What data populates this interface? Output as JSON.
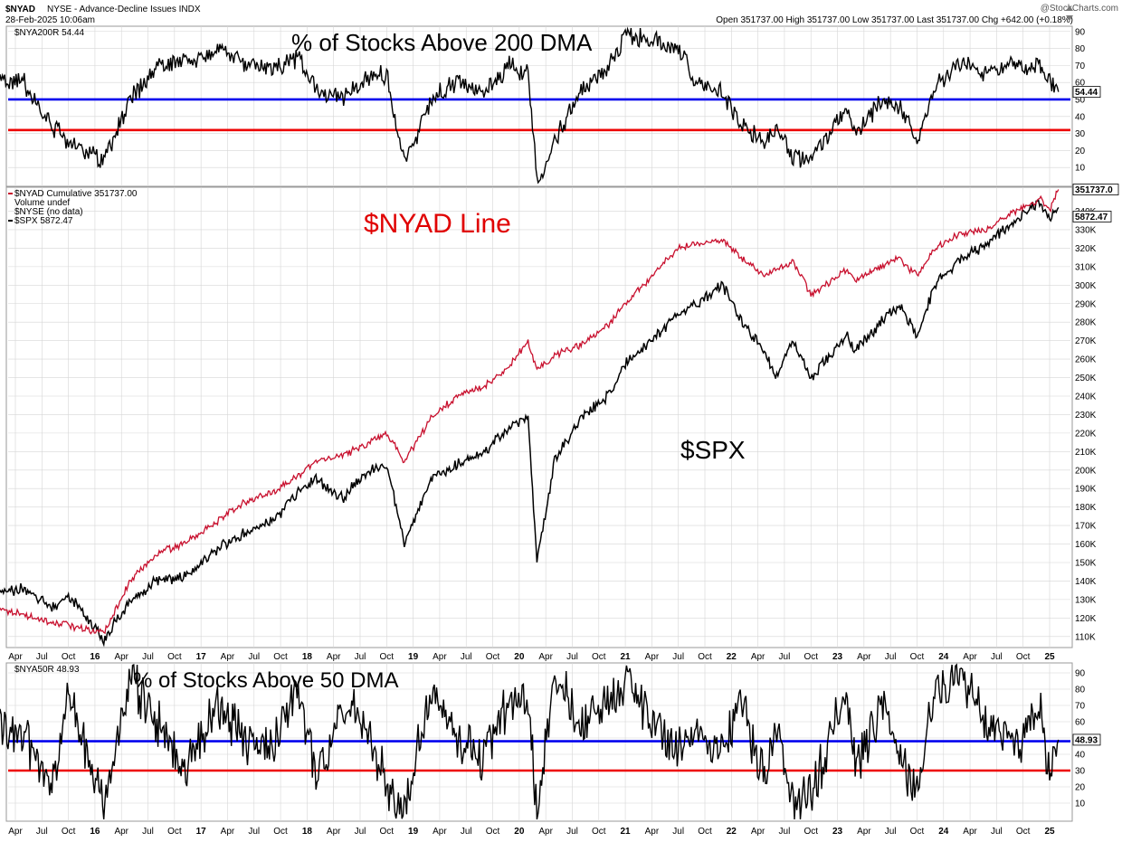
{
  "header": {
    "symbol": "$NYAD",
    "description": "NYSE - Advance-Decline Issues INDX",
    "date": "28-Feb-2025 10:06am",
    "quote": "Open 351737.00  High 351737.00  Low 351737.00  Last 351737.00  Chg +642.00 (+0.18%)",
    "brand": "@StockCharts.com"
  },
  "colors": {
    "black_series": "#000000",
    "ad_line": "#c8102e",
    "blue_threshold": "#0000ee",
    "red_threshold": "#ee0000",
    "grid": "#d6d6d6",
    "panel_border": "#9a9a9a"
  },
  "x_axis_labels": [
    "Apr",
    "Jul",
    "Oct",
    "16",
    "Apr",
    "Jul",
    "Oct",
    "17",
    "Apr",
    "Jul",
    "Oct",
    "18",
    "Apr",
    "Jul",
    "Oct",
    "19",
    "Apr",
    "Jul",
    "Oct",
    "20",
    "Apr",
    "Jul",
    "Oct",
    "21",
    "Apr",
    "Jul",
    "Oct",
    "22",
    "Apr",
    "Jul",
    "Oct",
    "23",
    "Apr",
    "Jul",
    "Oct",
    "24",
    "Apr",
    "Jul",
    "Oct",
    "25"
  ],
  "chart_data": [
    {
      "type": "line",
      "legend": "$NYA200R 54.44",
      "annotation": "% of Stocks Above 200 DMA",
      "last_value_label": "54.44",
      "yticks": [
        10,
        20,
        30,
        40,
        50,
        60,
        70,
        80,
        90
      ],
      "ylim": [
        0,
        92
      ],
      "hlines": [
        {
          "y": 50,
          "color": "blue"
        },
        {
          "y": 32,
          "color": "red"
        }
      ],
      "x": [
        "2015-02",
        "2015-05",
        "2015-08",
        "2015-10",
        "2016-02",
        "2016-05",
        "2016-08",
        "2016-11",
        "2017-03",
        "2017-06",
        "2017-09",
        "2017-12",
        "2018-02",
        "2018-05",
        "2018-08",
        "2018-10",
        "2018-12",
        "2019-03",
        "2019-06",
        "2019-09",
        "2019-12",
        "2020-02",
        "2020-03",
        "2020-05",
        "2020-08",
        "2020-11",
        "2021-01",
        "2021-04",
        "2021-07",
        "2021-09",
        "2021-12",
        "2022-02",
        "2022-05",
        "2022-06",
        "2022-08",
        "2022-10",
        "2023-02",
        "2023-03",
        "2023-06",
        "2023-08",
        "2023-10",
        "2023-12",
        "2024-03",
        "2024-06",
        "2024-09",
        "2024-12",
        "2025-01",
        "2025-02"
      ],
      "series": [
        {
          "values": [
            62,
            60,
            35,
            25,
            15,
            50,
            70,
            72,
            80,
            72,
            68,
            75,
            55,
            52,
            62,
            65,
            12,
            50,
            60,
            55,
            70,
            65,
            3,
            25,
            55,
            68,
            88,
            85,
            80,
            60,
            55,
            35,
            25,
            35,
            15,
            15,
            45,
            30,
            50,
            45,
            25,
            58,
            72,
            65,
            70,
            70,
            60,
            54.44
          ]
        }
      ]
    },
    {
      "type": "line",
      "legend": [
        "$NYAD Cumulative 351737.00",
        "Volume undef",
        "$NYSE (no data)",
        "$SPX 5872.47"
      ],
      "annotations": [
        "$NYAD Line",
        "$SPX"
      ],
      "last_value_labels": [
        "351737.0",
        "5872.47"
      ],
      "yticks": [
        "110K",
        "120K",
        "130K",
        "140K",
        "150K",
        "160K",
        "170K",
        "180K",
        "190K",
        "200K",
        "210K",
        "220K",
        "230K",
        "240K",
        "250K",
        "260K",
        "270K",
        "280K",
        "290K",
        "300K",
        "310K",
        "320K",
        "330K",
        "340K"
      ],
      "ylim": [
        105000,
        352000
      ],
      "x": [
        "2015-02",
        "2015-05",
        "2015-08",
        "2015-10",
        "2016-02",
        "2016-05",
        "2016-08",
        "2016-11",
        "2017-03",
        "2017-06",
        "2017-09",
        "2017-12",
        "2018-02",
        "2018-05",
        "2018-08",
        "2018-10",
        "2018-12",
        "2019-03",
        "2019-06",
        "2019-09",
        "2019-12",
        "2020-02",
        "2020-03",
        "2020-05",
        "2020-08",
        "2020-11",
        "2021-01",
        "2021-04",
        "2021-07",
        "2021-09",
        "2021-12",
        "2022-02",
        "2022-05",
        "2022-06",
        "2022-08",
        "2022-10",
        "2023-02",
        "2023-03",
        "2023-06",
        "2023-08",
        "2023-10",
        "2023-12",
        "2024-03",
        "2024-06",
        "2024-09",
        "2024-12",
        "2025-01",
        "2025-02"
      ],
      "series": [
        {
          "name": "$NYAD Cumulative",
          "values": [
            125000,
            122000,
            118000,
            116000,
            112000,
            140000,
            155000,
            160000,
            173000,
            183000,
            188000,
            197000,
            205000,
            208000,
            215000,
            220000,
            205000,
            228000,
            240000,
            245000,
            257000,
            270000,
            255000,
            262000,
            268000,
            278000,
            290000,
            305000,
            320000,
            322000,
            325000,
            315000,
            305000,
            308000,
            312000,
            295000,
            308000,
            303000,
            310000,
            315000,
            305000,
            320000,
            328000,
            330000,
            340000,
            347000,
            341000,
            351737
          ]
        },
        {
          "name": "$SPX",
          "values": [
            134000,
            136000,
            125000,
            133000,
            108000,
            130000,
            140000,
            142000,
            158000,
            166000,
            172000,
            188000,
            195000,
            185000,
            200000,
            203000,
            160000,
            195000,
            203000,
            210000,
            222000,
            230000,
            150000,
            205000,
            228000,
            240000,
            258000,
            270000,
            285000,
            290000,
            300000,
            282000,
            262000,
            250000,
            270000,
            250000,
            273000,
            265000,
            280000,
            290000,
            272000,
            300000,
            315000,
            322000,
            335000,
            345000,
            335000,
            342000
          ]
        }
      ]
    },
    {
      "type": "line",
      "legend": "$NYA50R 48.93",
      "annotation": "% of Stocks Above 50 DMA",
      "last_value_label": "48.93",
      "yticks": [
        10,
        20,
        30,
        40,
        50,
        60,
        70,
        80,
        90
      ],
      "ylim": [
        0,
        95
      ],
      "hlines": [
        {
          "y": 48,
          "color": "blue"
        },
        {
          "y": 30,
          "color": "red"
        }
      ],
      "x": [
        "2015-02",
        "2015-05",
        "2015-08",
        "2015-10",
        "2016-02",
        "2016-05",
        "2016-08",
        "2016-11",
        "2017-03",
        "2017-06",
        "2017-09",
        "2017-12",
        "2018-02",
        "2018-05",
        "2018-08",
        "2018-10",
        "2018-12",
        "2019-03",
        "2019-06",
        "2019-09",
        "2019-12",
        "2020-02",
        "2020-03",
        "2020-05",
        "2020-08",
        "2020-11",
        "2021-01",
        "2021-04",
        "2021-07",
        "2021-09",
        "2021-12",
        "2022-02",
        "2022-05",
        "2022-06",
        "2022-08",
        "2022-10",
        "2023-02",
        "2023-03",
        "2023-06",
        "2023-08",
        "2023-10",
        "2023-12",
        "2024-03",
        "2024-06",
        "2024-09",
        "2024-12",
        "2025-01",
        "2025-02"
      ],
      "series": [
        {
          "values": [
            60,
            50,
            20,
            75,
            10,
            88,
            60,
            30,
            70,
            50,
            40,
            80,
            25,
            70,
            55,
            20,
            10,
            80,
            50,
            40,
            75,
            70,
            3,
            90,
            60,
            70,
            88,
            60,
            45,
            55,
            40,
            75,
            20,
            60,
            10,
            15,
            80,
            30,
            70,
            40,
            15,
            80,
            85,
            60,
            45,
            70,
            25,
            48.93
          ]
        }
      ]
    }
  ]
}
